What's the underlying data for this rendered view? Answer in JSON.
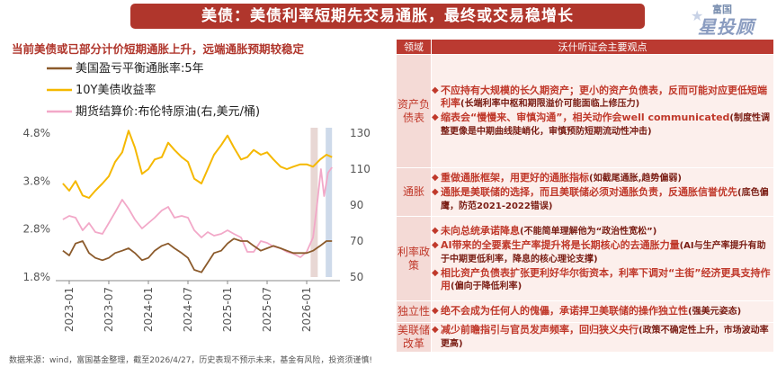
{
  "title": "美债：美债利率短期先交易通胀，最终或交易稳增长",
  "logo": {
    "line1": "富国",
    "line2": "星投顾"
  },
  "subtitle": "当前美债或已部分计价短期通胀上升，远端通胀预期较稳定",
  "source": "数据来源：wind，富国基金整理，截至2026/4/27，历史表现不预示未来，基金有风险，投资须谨慎!",
  "chart_data": {
    "type": "line",
    "x_ticks": [
      "2023-01",
      "2023-07",
      "2024-01",
      "2024-07",
      "2025-01",
      "2025-07",
      "2026-01"
    ],
    "x_range": [
      "2022-11",
      "2026-05"
    ],
    "y_left": {
      "ticks": [
        "1.8%",
        "2.8%",
        "3.8%",
        "4.8%"
      ],
      "range": [
        1.8,
        4.8
      ]
    },
    "y_right": {
      "ticks": [
        "50",
        "70",
        "90",
        "110",
        "130"
      ],
      "range": [
        50,
        130
      ]
    },
    "series": [
      {
        "name": "美国盈亏平衡通胀率:5年",
        "axis": "left",
        "color": "#8b5a2b",
        "values": [
          [
            2022.92,
            2.35
          ],
          [
            2023.0,
            2.25
          ],
          [
            2023.08,
            2.5
          ],
          [
            2023.17,
            2.55
          ],
          [
            2023.25,
            2.3
          ],
          [
            2023.33,
            2.2
          ],
          [
            2023.42,
            2.15
          ],
          [
            2023.5,
            2.2
          ],
          [
            2023.58,
            2.3
          ],
          [
            2023.67,
            2.35
          ],
          [
            2023.75,
            2.4
          ],
          [
            2023.83,
            2.3
          ],
          [
            2023.92,
            2.15
          ],
          [
            2024.0,
            2.2
          ],
          [
            2024.08,
            2.35
          ],
          [
            2024.17,
            2.45
          ],
          [
            2024.25,
            2.5
          ],
          [
            2024.33,
            2.4
          ],
          [
            2024.42,
            2.3
          ],
          [
            2024.5,
            2.2
          ],
          [
            2024.58,
            1.95
          ],
          [
            2024.67,
            1.9
          ],
          [
            2024.75,
            2.1
          ],
          [
            2024.83,
            2.3
          ],
          [
            2024.92,
            2.35
          ],
          [
            2025.0,
            2.5
          ],
          [
            2025.08,
            2.6
          ],
          [
            2025.17,
            2.55
          ],
          [
            2025.25,
            2.55
          ],
          [
            2025.33,
            2.45
          ],
          [
            2025.42,
            2.35
          ],
          [
            2025.5,
            2.4
          ],
          [
            2025.58,
            2.45
          ],
          [
            2025.67,
            2.4
          ],
          [
            2025.75,
            2.35
          ],
          [
            2025.83,
            2.3
          ],
          [
            2025.92,
            2.3
          ],
          [
            2026.0,
            2.3
          ],
          [
            2026.08,
            2.35
          ],
          [
            2026.17,
            2.45
          ],
          [
            2026.25,
            2.55
          ],
          [
            2026.32,
            2.55
          ]
        ]
      },
      {
        "name": "10Y美债收益率",
        "axis": "left",
        "color": "#f5b800",
        "values": [
          [
            2022.92,
            3.75
          ],
          [
            2023.0,
            3.6
          ],
          [
            2023.08,
            3.8
          ],
          [
            2023.17,
            3.5
          ],
          [
            2023.25,
            3.45
          ],
          [
            2023.33,
            3.6
          ],
          [
            2023.42,
            3.75
          ],
          [
            2023.5,
            3.9
          ],
          [
            2023.58,
            4.2
          ],
          [
            2023.67,
            4.4
          ],
          [
            2023.75,
            4.85
          ],
          [
            2023.83,
            4.5
          ],
          [
            2023.92,
            3.95
          ],
          [
            2024.0,
            4.05
          ],
          [
            2024.08,
            4.25
          ],
          [
            2024.17,
            4.3
          ],
          [
            2024.25,
            4.6
          ],
          [
            2024.33,
            4.45
          ],
          [
            2024.42,
            4.3
          ],
          [
            2024.5,
            4.2
          ],
          [
            2024.58,
            3.85
          ],
          [
            2024.67,
            3.75
          ],
          [
            2024.75,
            4.05
          ],
          [
            2024.83,
            4.35
          ],
          [
            2024.92,
            4.55
          ],
          [
            2025.0,
            4.75
          ],
          [
            2025.08,
            4.5
          ],
          [
            2025.17,
            4.25
          ],
          [
            2025.25,
            4.3
          ],
          [
            2025.33,
            4.45
          ],
          [
            2025.42,
            4.35
          ],
          [
            2025.5,
            4.4
          ],
          [
            2025.58,
            4.25
          ],
          [
            2025.67,
            4.1
          ],
          [
            2025.75,
            4.05
          ],
          [
            2025.83,
            4.1
          ],
          [
            2025.92,
            4.15
          ],
          [
            2026.0,
            4.15
          ],
          [
            2026.08,
            4.1
          ],
          [
            2026.17,
            4.25
          ],
          [
            2026.25,
            4.35
          ],
          [
            2026.32,
            4.3
          ]
        ]
      },
      {
        "name": "期货结算价:布伦特原油(右,美元/桶)",
        "axis": "right",
        "color": "#f2a8c8",
        "values": [
          [
            2022.92,
            82
          ],
          [
            2023.0,
            84
          ],
          [
            2023.08,
            83
          ],
          [
            2023.17,
            76
          ],
          [
            2023.25,
            80
          ],
          [
            2023.33,
            75
          ],
          [
            2023.42,
            74
          ],
          [
            2023.5,
            80
          ],
          [
            2023.58,
            86
          ],
          [
            2023.67,
            93
          ],
          [
            2023.75,
            88
          ],
          [
            2023.83,
            82
          ],
          [
            2023.92,
            77
          ],
          [
            2024.0,
            80
          ],
          [
            2024.08,
            83
          ],
          [
            2024.17,
            87
          ],
          [
            2024.25,
            89
          ],
          [
            2024.33,
            83
          ],
          [
            2024.42,
            84
          ],
          [
            2024.5,
            83
          ],
          [
            2024.58,
            76
          ],
          [
            2024.67,
            72
          ],
          [
            2024.75,
            75
          ],
          [
            2024.83,
            73
          ],
          [
            2024.92,
            74
          ],
          [
            2025.0,
            76
          ],
          [
            2025.08,
            74
          ],
          [
            2025.17,
            72
          ],
          [
            2025.25,
            64
          ],
          [
            2025.33,
            64
          ],
          [
            2025.42,
            70
          ],
          [
            2025.5,
            69
          ],
          [
            2025.58,
            67
          ],
          [
            2025.67,
            66
          ],
          [
            2025.75,
            64
          ],
          [
            2025.83,
            63
          ],
          [
            2025.92,
            61
          ],
          [
            2026.0,
            64
          ],
          [
            2026.08,
            72
          ],
          [
            2026.13,
            90
          ],
          [
            2026.18,
            110
          ],
          [
            2026.22,
            95
          ],
          [
            2026.27,
            108
          ],
          [
            2026.32,
            111
          ]
        ]
      }
    ],
    "shaded": [
      {
        "from": 2026.05,
        "to": 2026.14,
        "color": "#e6d3cf"
      },
      {
        "from": 2026.24,
        "to": 2026.32,
        "color": "#c9d6e8"
      }
    ]
  },
  "table": {
    "header_left": "领域",
    "header_right": "沃什听证会主要观点",
    "rows": [
      {
        "cat": "资产负债表",
        "items": [
          {
            "text": "不应持有大规模的长久期资产；更小的资产负债表，反而可能对应更低短端利率",
            "note": "(长端利率中枢和期限溢价可能面临上修压力)"
          },
          {
            "text": "缩表会“慢慢来、审慎沟通”，相关动作会well communicated",
            "note": "(制度性调整更像是中期曲线陡峭化，审慎预防短期流动性冲击)"
          }
        ]
      },
      {
        "cat": "通胀",
        "items": [
          {
            "text": "重做通胀框架，用更好的通胀指标",
            "note": "(如截尾通胀,趋势偏弱)"
          },
          {
            "text": "通胀是美联储的选择，而且美联储必须对通胀负责，反通胀信誉优先",
            "note": "(底色偏鹰，防范2021-2022错误)"
          }
        ]
      },
      {
        "cat": "利率政策",
        "items": [
          {
            "text": "未向总统承诺降息",
            "note": "(不能简单理解他为“政治性宽松”)"
          },
          {
            "text": "AI带来的全要素生产率提升将是长期核心的去通胀力量",
            "note": "(AI与生产率提升有助于中期更低利率，降息的核心理论支撑)"
          },
          {
            "text": "相比资产负债表扩张更利好华尔街资本，利率下调对“主街”经济更具支持作用",
            "note": "(偏向于降低利率)"
          }
        ]
      },
      {
        "cat": "独立性",
        "items": [
          {
            "text": "绝不会成为任何人的傀儡，承诺捍卫美联储的操作独立性",
            "note": "(强美元姿态)"
          }
        ]
      },
      {
        "cat": "美联储改革",
        "items": [
          {
            "text": "减少前瞻指引与官员发声频率，回归狭义央行",
            "note": "(政策不确定性上升，市场波动率更高)"
          }
        ]
      }
    ]
  }
}
